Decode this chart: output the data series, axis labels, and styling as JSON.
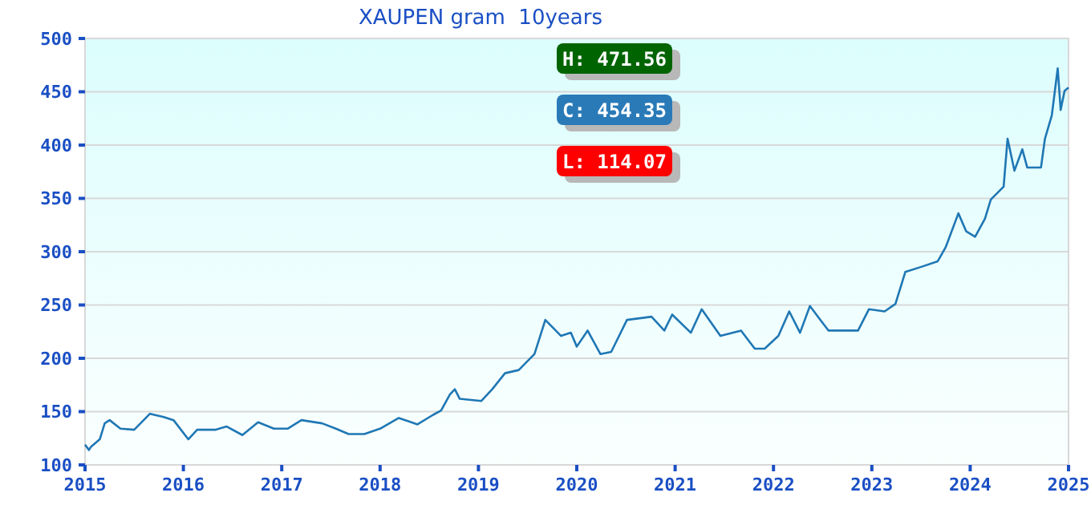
{
  "chart_data": {
    "type": "line",
    "title": "XAUPEN gram  10years",
    "x": [
      2015.0,
      2015.04,
      2015.06,
      2015.15,
      2015.2,
      2015.25,
      2015.36,
      2015.5,
      2015.66,
      2015.8,
      2015.9,
      2016.05,
      2016.14,
      2016.33,
      2016.44,
      2016.6,
      2016.76,
      2016.92,
      2017.06,
      2017.2,
      2017.41,
      2017.55,
      2017.68,
      2017.84,
      2018.0,
      2018.19,
      2018.38,
      2018.54,
      2018.62,
      2018.71,
      2018.76,
      2018.81,
      2019.03,
      2019.14,
      2019.27,
      2019.41,
      2019.57,
      2019.68,
      2019.84,
      2019.94,
      2020.0,
      2020.11,
      2020.24,
      2020.35,
      2020.51,
      2020.76,
      2020.89,
      2020.97,
      2021.16,
      2021.27,
      2021.46,
      2021.67,
      2021.81,
      2021.91,
      2022.05,
      2022.16,
      2022.27,
      2022.37,
      2022.56,
      2022.86,
      2022.97,
      2023.13,
      2023.24,
      2023.34,
      2023.51,
      2023.67,
      2023.75,
      2023.88,
      2023.96,
      2024.05,
      2024.15,
      2024.21,
      2024.34,
      2024.38,
      2024.45,
      2024.53,
      2024.58,
      2024.72,
      2024.76,
      2024.83,
      2024.89,
      2024.92,
      2024.96,
      2025.0
    ],
    "series": [
      {
        "color": "#1f77b4",
        "values": [
          119,
          114,
          117,
          124,
          139,
          142,
          134,
          133,
          148,
          145,
          142,
          124,
          133,
          133,
          136,
          128,
          140,
          134,
          134,
          142,
          139,
          134,
          129,
          129,
          134,
          144,
          138,
          147,
          151,
          166,
          171,
          162,
          160,
          171,
          186,
          189,
          204,
          236,
          221,
          224,
          211,
          226,
          204,
          206,
          236,
          239,
          226,
          241,
          224,
          246,
          221,
          226,
          209,
          209,
          221,
          244,
          224,
          249,
          226,
          226,
          246,
          244,
          251,
          281,
          286,
          291,
          304,
          336,
          319,
          314,
          331,
          349,
          361,
          406,
          376,
          396,
          379,
          379,
          406,
          428,
          472,
          433,
          451,
          454
        ]
      }
    ],
    "xlim": [
      2015,
      2025
    ],
    "xticks": [
      2015,
      2016,
      2017,
      2018,
      2019,
      2020,
      2021,
      2022,
      2023,
      2024,
      2025
    ],
    "ylim": [
      100,
      500
    ],
    "yticks": [
      100,
      150,
      200,
      250,
      300,
      350,
      400,
      450,
      500
    ],
    "grid": "y",
    "marker": "none",
    "line_style": "solid",
    "annotations": [
      "H: 471.56",
      "C: 454.35",
      "L: 114.07"
    ]
  }
}
